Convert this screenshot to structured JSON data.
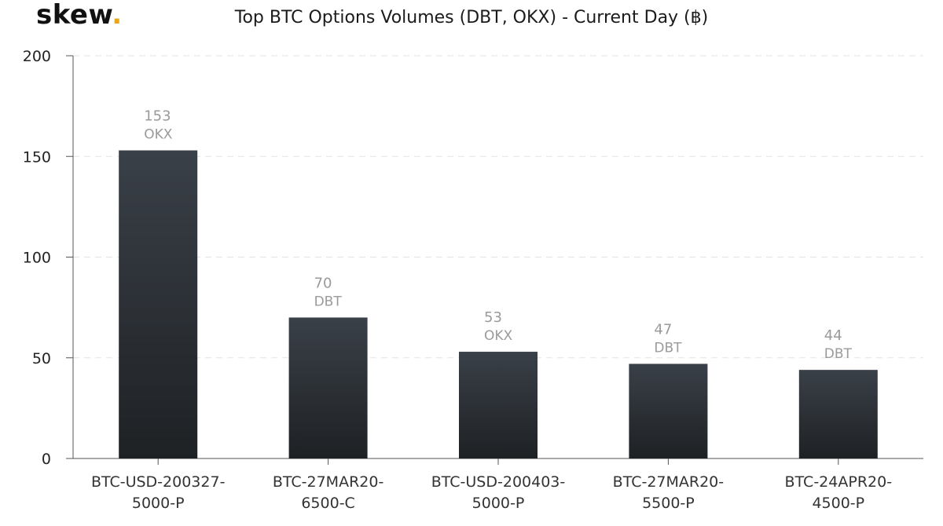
{
  "brand": {
    "name": "skew",
    "dot": "."
  },
  "chart_data": {
    "type": "bar",
    "title": "Top BTC Options Volumes (DBT, OKX) - Current Day (฿)",
    "categories": [
      [
        "BTC-USD-200327-",
        "5000-P"
      ],
      [
        "BTC-27MAR20-",
        "6500-C"
      ],
      [
        "BTC-USD-200403-",
        "5000-P"
      ],
      [
        "BTC-27MAR20-",
        "5500-P"
      ],
      [
        "BTC-24APR20-",
        "4500-P"
      ]
    ],
    "values": [
      153,
      70,
      53,
      47,
      44
    ],
    "value_labels": [
      "153",
      "70",
      "53",
      "47",
      "44"
    ],
    "exchanges": [
      "OKX",
      "DBT",
      "OKX",
      "DBT",
      "DBT"
    ],
    "ylim": [
      0,
      200
    ],
    "yticks": [
      0,
      50,
      100,
      150,
      200
    ],
    "ytick_labels": [
      "0",
      "50",
      "100",
      "150",
      "200"
    ],
    "xlabel": "",
    "ylabel": "",
    "grid": true,
    "bar_color_top": "#3a4048",
    "bar_color_bottom": "#1e2124",
    "accent_color": "#e8a71b"
  }
}
